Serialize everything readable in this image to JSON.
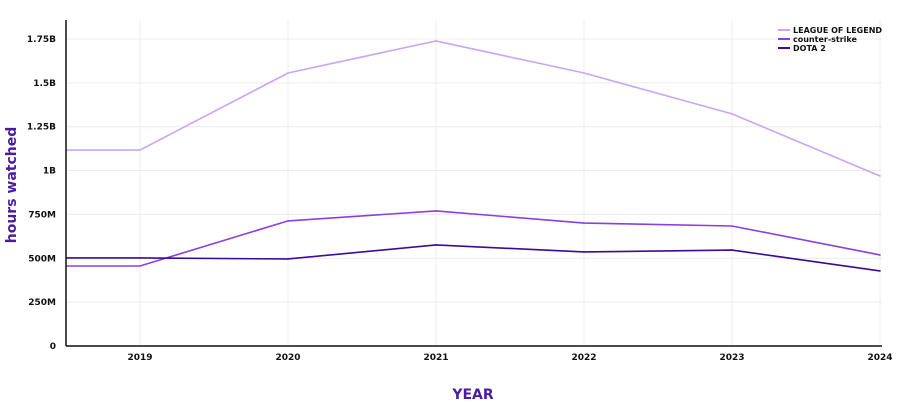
{
  "chart_data": {
    "type": "line",
    "title": "",
    "xlabel": "YEAR",
    "ylabel": "hours watched",
    "x": [
      2019,
      2020,
      2021,
      2022,
      2023,
      2024
    ],
    "xlim": [
      2018.5,
      2024
    ],
    "ylim": [
      0,
      1.85
    ],
    "y_ticks": [
      0,
      0.25,
      0.5,
      0.75,
      1,
      1.25,
      1.5,
      1.75
    ],
    "y_tick_labels": [
      "0",
      "250M",
      "500M",
      "750M",
      "1B",
      "1.25B",
      "1.5B",
      "1.75B"
    ],
    "x_tick_labels": [
      "2019",
      "2020",
      "2021",
      "2022",
      "2023",
      "2024"
    ],
    "grid": true,
    "legend_position": "top-right",
    "series": [
      {
        "name": "LEAGUE OF LEGEND",
        "color": "#c9a6f5",
        "values": [
          1.117,
          1.556,
          1.739,
          1.556,
          1.323,
          0.969
        ]
      },
      {
        "name": "counter-strike",
        "color": "#8a3fe0",
        "values": [
          0.456,
          0.713,
          0.77,
          0.701,
          0.684,
          0.519
        ]
      },
      {
        "name": "DOTA 2",
        "color": "#3d0a96",
        "values": [
          0.502,
          0.496,
          0.576,
          0.536,
          0.547,
          0.428
        ]
      }
    ]
  }
}
